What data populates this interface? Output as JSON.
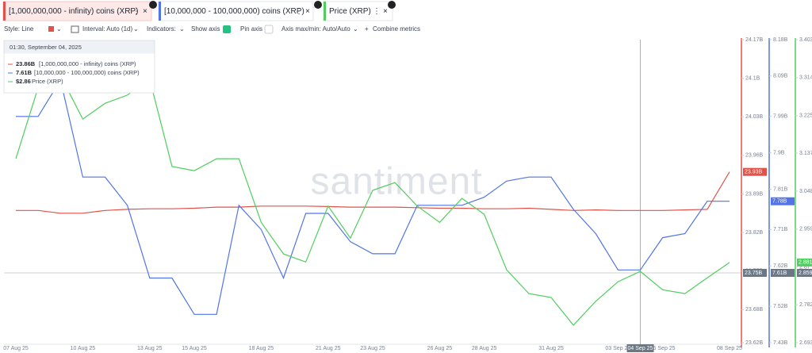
{
  "tabs": [
    {
      "label": "[1,000,000,000 - infinity) coins (XRP)"
    },
    {
      "label": "[10,000,000 - 100,000,000) coins (XRP)"
    },
    {
      "label": "Price (XRP)"
    }
  ],
  "toolbar": {
    "style": "Style: Line",
    "interval": "Interval: Auto (1d)",
    "indicators": "Indicators:",
    "show_axis": "Show axis",
    "pin_axis": "Pin axis",
    "axis_minmax": "Axis max/min: Auto/Auto",
    "combine": "Combine metrics"
  },
  "tooltip": {
    "title": "01:30, September 04, 2025",
    "rows": [
      {
        "value": "23.86B",
        "name": "[1,000,000,000 - infinity) coins (XRP)"
      },
      {
        "value": "7.61B",
        "name": "[10,000,000 - 100,000,000) coins (XRP)"
      },
      {
        "value": "$2.86",
        "name": "Price (XRP)"
      }
    ]
  },
  "watermark": "santiment",
  "crosshair": {
    "date": "04 Sep 25",
    "labels": [
      "23.75B",
      "7.61B",
      "2.859"
    ]
  },
  "chart_data": {
    "type": "line",
    "categories": [
      "07 Aug 25",
      null,
      null,
      "10 Aug 25",
      null,
      null,
      "13 Aug 25",
      null,
      "15 Aug 25",
      null,
      null,
      "18 Aug 25",
      null,
      null,
      "21 Aug 25",
      null,
      "23 Aug 25",
      null,
      null,
      "26 Aug 25",
      null,
      "28 Aug 25",
      null,
      null,
      "31 Aug 25",
      null,
      null,
      "03 Sep 25",
      null,
      "05 Sep 25",
      null,
      null,
      "08 Sep 25"
    ],
    "series": [
      {
        "name": "[1,000,000,000 - infinity) coins (XRP)",
        "color": "#e0534a",
        "axis": "y",
        "values": [
          23.86,
          23.86,
          23.855,
          23.855,
          23.86,
          23.862,
          23.863,
          23.863,
          23.864,
          23.866,
          23.866,
          23.868,
          23.868,
          23.868,
          23.867,
          23.866,
          23.866,
          23.866,
          23.865,
          23.864,
          23.864,
          23.863,
          23.863,
          23.864,
          23.862,
          23.86,
          23.861,
          23.86,
          23.86,
          23.86,
          23.861,
          23.862,
          23.93
        ],
        "value_labels": [
          null,
          null,
          null,
          null,
          null,
          null,
          null,
          null,
          null,
          null,
          null,
          null,
          null,
          null,
          null,
          null,
          null,
          null,
          null,
          null,
          null,
          null,
          null,
          null,
          null,
          null,
          null,
          null,
          null,
          null,
          null,
          null,
          "23.93B"
        ]
      },
      {
        "name": "[10,000,000 - 100,000,000) coins (XRP)",
        "color": "#5274e6",
        "axis": "y2",
        "values": [
          7.99,
          7.99,
          8.08,
          7.84,
          7.84,
          7.77,
          7.59,
          7.59,
          7.5,
          7.5,
          7.77,
          7.71,
          7.59,
          7.75,
          7.75,
          7.68,
          7.65,
          7.65,
          7.77,
          7.77,
          7.77,
          7.79,
          7.83,
          7.84,
          7.84,
          7.76,
          7.7,
          7.61,
          7.61,
          7.69,
          7.7,
          7.78,
          7.78
        ],
        "value_labels": [
          null,
          null,
          null,
          null,
          null,
          null,
          null,
          null,
          null,
          null,
          null,
          null,
          null,
          null,
          null,
          null,
          null,
          null,
          null,
          null,
          null,
          null,
          null,
          null,
          null,
          null,
          null,
          null,
          null,
          null,
          null,
          null,
          "7.78B"
        ]
      },
      {
        "name": "Price (XRP)",
        "color": "#4fce5d",
        "axis": "y3",
        "values": [
          3.124,
          3.291,
          3.319,
          3.217,
          3.254,
          3.273,
          3.31,
          3.106,
          3.096,
          3.124,
          3.124,
          2.975,
          2.901,
          2.882,
          3.013,
          2.938,
          3.05,
          3.068,
          3.013,
          2.975,
          3.031,
          2.994,
          2.864,
          2.808,
          2.799,
          2.734,
          2.79,
          2.836,
          2.86,
          2.817,
          2.808,
          2.845,
          2.881
        ],
        "value_labels": [
          null,
          null,
          null,
          null,
          null,
          null,
          null,
          null,
          null,
          null,
          null,
          null,
          null,
          null,
          null,
          null,
          null,
          null,
          null,
          null,
          null,
          null,
          null,
          null,
          null,
          null,
          null,
          null,
          null,
          null,
          null,
          null,
          "2.881"
        ]
      }
    ],
    "ylim": [
      23.62,
      24.17
    ],
    "yticks": [
      {
        "value": 24.17,
        "label": "24.17B"
      },
      {
        "value": 24.1,
        "label": "24.1B"
      },
      {
        "value": 24.03,
        "label": "24.03B"
      },
      {
        "value": 23.96,
        "label": "23.96B"
      },
      {
        "value": 23.89,
        "label": "23.89B"
      },
      {
        "value": 23.82,
        "label": "23.82B"
      },
      {
        "value": 23.75,
        "label": "23.75B"
      },
      {
        "value": 23.68,
        "label": "23.68B"
      },
      {
        "value": 23.62,
        "label": "23.62B"
      }
    ],
    "y2lim": [
      7.43,
      8.18
    ],
    "y2ticks": [
      {
        "value": 8.18,
        "label": "8.18B"
      },
      {
        "value": 8.09,
        "label": "8.09B"
      },
      {
        "value": 7.99,
        "label": "7.99B"
      },
      {
        "value": 7.9,
        "label": "7.9B"
      },
      {
        "value": 7.81,
        "label": "7.81B"
      },
      {
        "value": 7.71,
        "label": "7.71B"
      },
      {
        "value": 7.62,
        "label": "7.62B"
      },
      {
        "value": 7.52,
        "label": "7.52B"
      },
      {
        "value": 7.43,
        "label": "7.43B"
      }
    ],
    "y3lim": [
      2.693,
      3.403
    ],
    "y3ticks": [
      3.403,
      3.314,
      3.225,
      3.137,
      3.048,
      2.959,
      2.87,
      2.782,
      2.693
    ]
  }
}
